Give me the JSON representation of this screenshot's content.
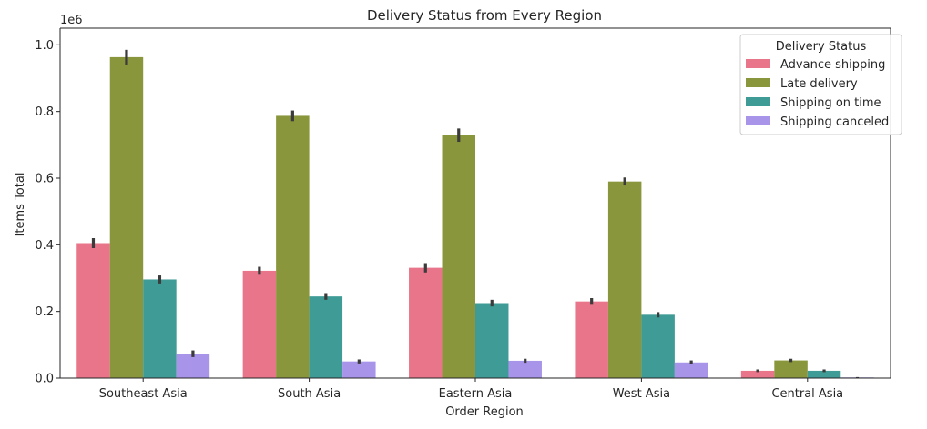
{
  "chart_data": {
    "type": "bar",
    "title": "Delivery Status from Every Region",
    "xlabel": "Order Region",
    "ylabel": "Items Total",
    "y_offset_label": "1e6",
    "ylim": [
      0,
      1.05
    ],
    "y_ticks": [
      0.0,
      0.2,
      0.4,
      0.6,
      0.8,
      1.0
    ],
    "y_tick_labels": [
      "0.0",
      "0.2",
      "0.4",
      "0.6",
      "0.8",
      "1.0"
    ],
    "categories": [
      "Southeast Asia",
      "South Asia",
      "Eastern Asia",
      "West Asia",
      "Central Asia"
    ],
    "legend": {
      "title": "Delivery Status",
      "position": "top-right"
    },
    "grid": false,
    "series": [
      {
        "name": "Advance shipping",
        "color": "#e8758a",
        "values": [
          0.405,
          0.322,
          0.331,
          0.23,
          0.022
        ],
        "err": [
          0.015,
          0.012,
          0.014,
          0.01,
          0.004
        ]
      },
      {
        "name": "Late delivery",
        "color": "#8a963c",
        "values": [
          0.963,
          0.787,
          0.729,
          0.59,
          0.053
        ],
        "err": [
          0.022,
          0.016,
          0.02,
          0.012,
          0.005
        ]
      },
      {
        "name": "Shipping on time",
        "color": "#3e9b96",
        "values": [
          0.296,
          0.245,
          0.225,
          0.19,
          0.022
        ],
        "err": [
          0.012,
          0.01,
          0.01,
          0.008,
          0.004
        ]
      },
      {
        "name": "Shipping canceled",
        "color": "#a895ea",
        "values": [
          0.073,
          0.05,
          0.052,
          0.047,
          0.002
        ],
        "err": [
          0.01,
          0.006,
          0.006,
          0.006,
          0.001
        ]
      }
    ]
  }
}
